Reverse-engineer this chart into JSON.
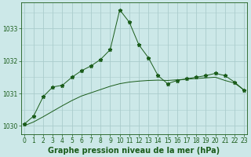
{
  "title": "Graphe pression niveau de la mer (hPa)",
  "bg_color": "#cce8e8",
  "plot_bg_color": "#cce8e8",
  "grid_color": "#aacccc",
  "line_color": "#1a5c1a",
  "xlim": [
    -0.3,
    23.3
  ],
  "ylim": [
    1029.75,
    1033.8
  ],
  "yticks": [
    1030,
    1031,
    1032,
    1033
  ],
  "xticks": [
    0,
    1,
    2,
    3,
    4,
    5,
    6,
    7,
    8,
    9,
    10,
    11,
    12,
    13,
    14,
    15,
    16,
    17,
    18,
    19,
    20,
    21,
    22,
    23
  ],
  "series1_x": [
    0,
    1,
    2,
    3,
    4,
    5,
    6,
    7,
    8,
    9,
    10,
    11,
    12,
    13,
    14,
    15,
    16,
    17,
    18,
    19,
    20,
    21,
    22,
    23
  ],
  "series1_y": [
    1030.05,
    1030.3,
    1030.9,
    1031.2,
    1031.25,
    1031.5,
    1031.7,
    1031.85,
    1032.05,
    1032.35,
    1033.58,
    1033.2,
    1032.5,
    1032.1,
    1031.55,
    1031.3,
    1031.4,
    1031.45,
    1031.5,
    1031.55,
    1031.62,
    1031.55,
    1031.35,
    1031.1
  ],
  "series2_x": [
    0,
    1,
    2,
    3,
    4,
    5,
    6,
    7,
    8,
    9,
    10,
    11,
    12,
    13,
    14,
    15,
    16,
    17,
    18,
    19,
    20,
    21,
    22,
    23
  ],
  "series2_y": [
    1030.0,
    1030.12,
    1030.28,
    1030.45,
    1030.62,
    1030.78,
    1030.92,
    1031.02,
    1031.12,
    1031.22,
    1031.3,
    1031.35,
    1031.38,
    1031.4,
    1031.41,
    1031.4,
    1031.42,
    1031.44,
    1031.46,
    1031.48,
    1031.5,
    1031.4,
    1031.32,
    1031.1
  ],
  "tick_fontsize": 5.5,
  "title_fontsize": 7
}
